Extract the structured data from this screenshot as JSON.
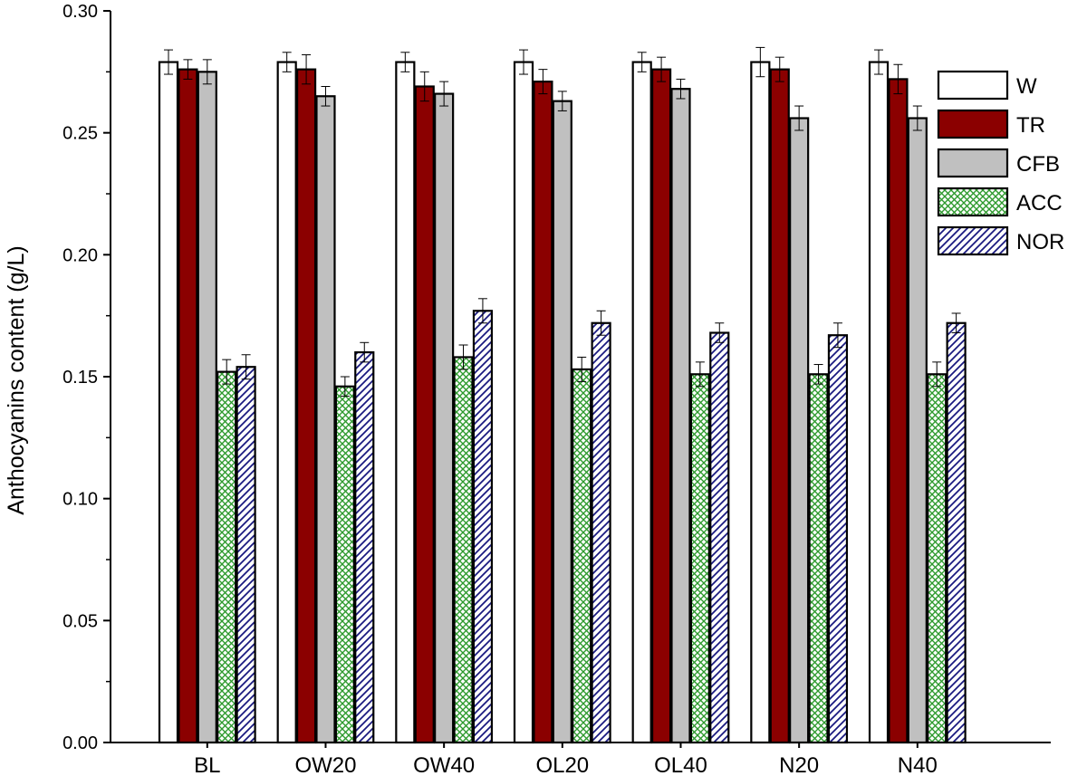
{
  "chart_data": {
    "type": "bar",
    "ylabel": "Anthocyanins content (g/L)",
    "xlabel": "",
    "ylim": [
      0,
      0.3
    ],
    "yticks": [
      "0.00",
      "0.05",
      "0.10",
      "0.15",
      "0.20",
      "0.25",
      "0.30"
    ],
    "categories": [
      "BL",
      "OW20",
      "OW40",
      "OL20",
      "OL40",
      "N20",
      "N40"
    ],
    "legend_position": "top-right",
    "series": [
      {
        "name": "W",
        "color": "#ffffff",
        "pattern": "solid",
        "values": [
          0.279,
          0.279,
          0.279,
          0.279,
          0.279,
          0.279,
          0.279
        ],
        "errors": [
          0.005,
          0.004,
          0.004,
          0.005,
          0.004,
          0.006,
          0.005
        ]
      },
      {
        "name": "TR",
        "color": "#8b0000",
        "pattern": "solid",
        "values": [
          0.276,
          0.276,
          0.269,
          0.271,
          0.276,
          0.276,
          0.272
        ],
        "errors": [
          0.004,
          0.006,
          0.006,
          0.005,
          0.005,
          0.005,
          0.006
        ]
      },
      {
        "name": "CFB",
        "color": "#c0c0c0",
        "pattern": "solid",
        "values": [
          0.275,
          0.265,
          0.266,
          0.263,
          0.268,
          0.256,
          0.256
        ],
        "errors": [
          0.005,
          0.004,
          0.005,
          0.004,
          0.004,
          0.005,
          0.005
        ]
      },
      {
        "name": "ACC",
        "color": "#2e9a2e",
        "pattern": "crosshatch",
        "values": [
          0.152,
          0.146,
          0.158,
          0.153,
          0.151,
          0.151,
          0.151
        ],
        "errors": [
          0.005,
          0.004,
          0.005,
          0.005,
          0.005,
          0.004,
          0.005
        ]
      },
      {
        "name": "NOR",
        "color": "#1a1a80",
        "pattern": "diagonal",
        "values": [
          0.154,
          0.16,
          0.177,
          0.172,
          0.168,
          0.167,
          0.172
        ],
        "errors": [
          0.005,
          0.004,
          0.005,
          0.005,
          0.004,
          0.005,
          0.004
        ]
      }
    ]
  }
}
